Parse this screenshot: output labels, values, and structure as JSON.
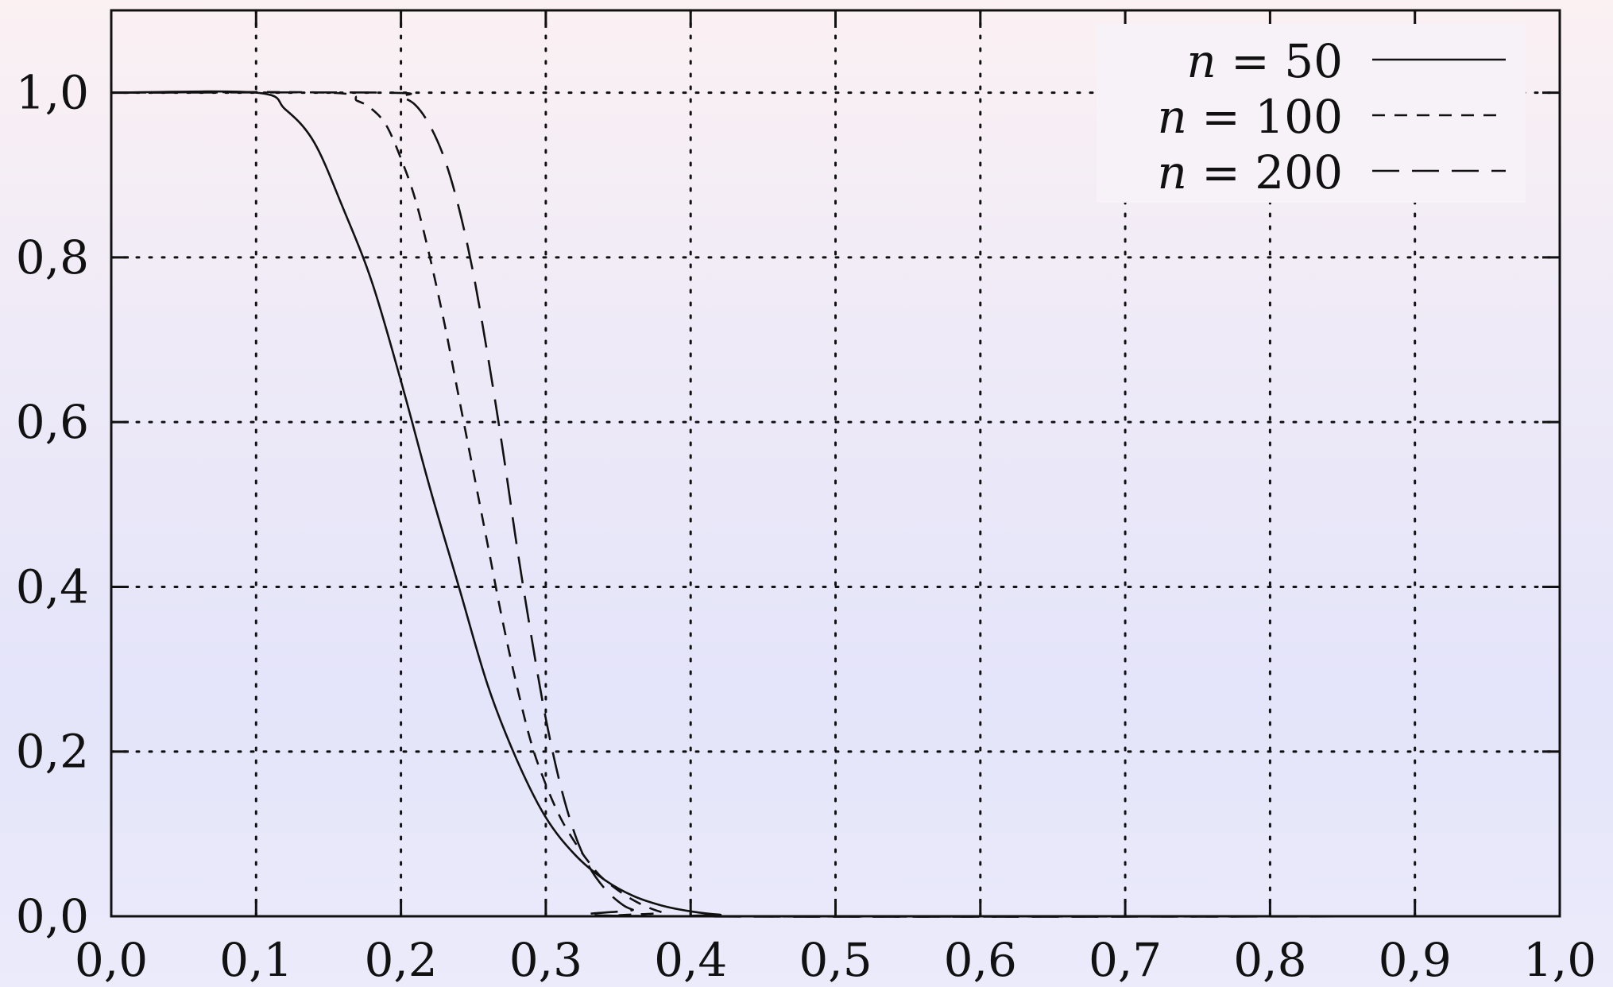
{
  "chart_data": {
    "type": "line",
    "title": "",
    "xlabel": "",
    "ylabel": "",
    "xlim": [
      0,
      1
    ],
    "ylim": [
      0,
      1.1
    ],
    "grid": true,
    "grid_style": "dotted",
    "legend_position": "top-right",
    "x_tick_labels": [
      "0,0",
      "0,1",
      "0,2",
      "0,3",
      "0,4",
      "0,5",
      "0,6",
      "0,7",
      "0,8",
      "0,9",
      "1,0"
    ],
    "y_tick_labels": [
      "0,0",
      "0,2",
      "0,4",
      "0,6",
      "0,8",
      "1,0"
    ],
    "x_ticks": [
      0,
      0.1,
      0.2,
      0.3,
      0.4,
      0.5,
      0.6,
      0.7,
      0.8,
      0.9,
      1.0
    ],
    "y_ticks": [
      0,
      0.2,
      0.4,
      0.6,
      0.8,
      1.0
    ],
    "series": [
      {
        "name": "n = 50",
        "legend_var": "n",
        "legend_rest": " = 50",
        "dash": "solid",
        "x": [
          0,
          0.1,
          0.12,
          0.14,
          0.16,
          0.18,
          0.2,
          0.22,
          0.24,
          0.26,
          0.28,
          0.3,
          0.32,
          0.34,
          0.36,
          0.38,
          0.4,
          0.42,
          0.45
        ],
        "y": [
          1.0,
          1.0,
          0.98,
          0.94,
          0.86,
          0.77,
          0.65,
          0.52,
          0.4,
          0.28,
          0.19,
          0.12,
          0.075,
          0.045,
          0.025,
          0.013,
          0.006,
          0.002,
          0.0
        ]
      },
      {
        "name": "n = 100",
        "legend_var": "n",
        "legend_rest": " = 100",
        "dash": "short",
        "x": [
          0,
          0.15,
          0.17,
          0.18,
          0.19,
          0.2,
          0.21,
          0.22,
          0.23,
          0.24,
          0.25,
          0.26,
          0.27,
          0.28,
          0.29,
          0.3,
          0.31,
          0.32,
          0.33,
          0.34,
          0.36,
          0.38,
          0.4
        ],
        "y": [
          1.0,
          1.0,
          0.99,
          0.98,
          0.96,
          0.92,
          0.87,
          0.8,
          0.72,
          0.63,
          0.54,
          0.45,
          0.36,
          0.28,
          0.21,
          0.16,
          0.12,
          0.09,
          0.065,
          0.045,
          0.02,
          0.005,
          0.0
        ]
      },
      {
        "name": "n = 200",
        "legend_var": "n",
        "legend_rest": " = 200",
        "dash": "long",
        "x": [
          0,
          0.19,
          0.2,
          0.21,
          0.22,
          0.23,
          0.24,
          0.25,
          0.26,
          0.27,
          0.28,
          0.29,
          0.3,
          0.31,
          0.32,
          0.33,
          0.34,
          0.35,
          0.36,
          0.38
        ],
        "y": [
          1.0,
          1.0,
          0.995,
          0.985,
          0.96,
          0.92,
          0.86,
          0.78,
          0.68,
          0.57,
          0.45,
          0.34,
          0.24,
          0.16,
          0.1,
          0.06,
          0.035,
          0.018,
          0.008,
          0.0
        ]
      }
    ]
  }
}
